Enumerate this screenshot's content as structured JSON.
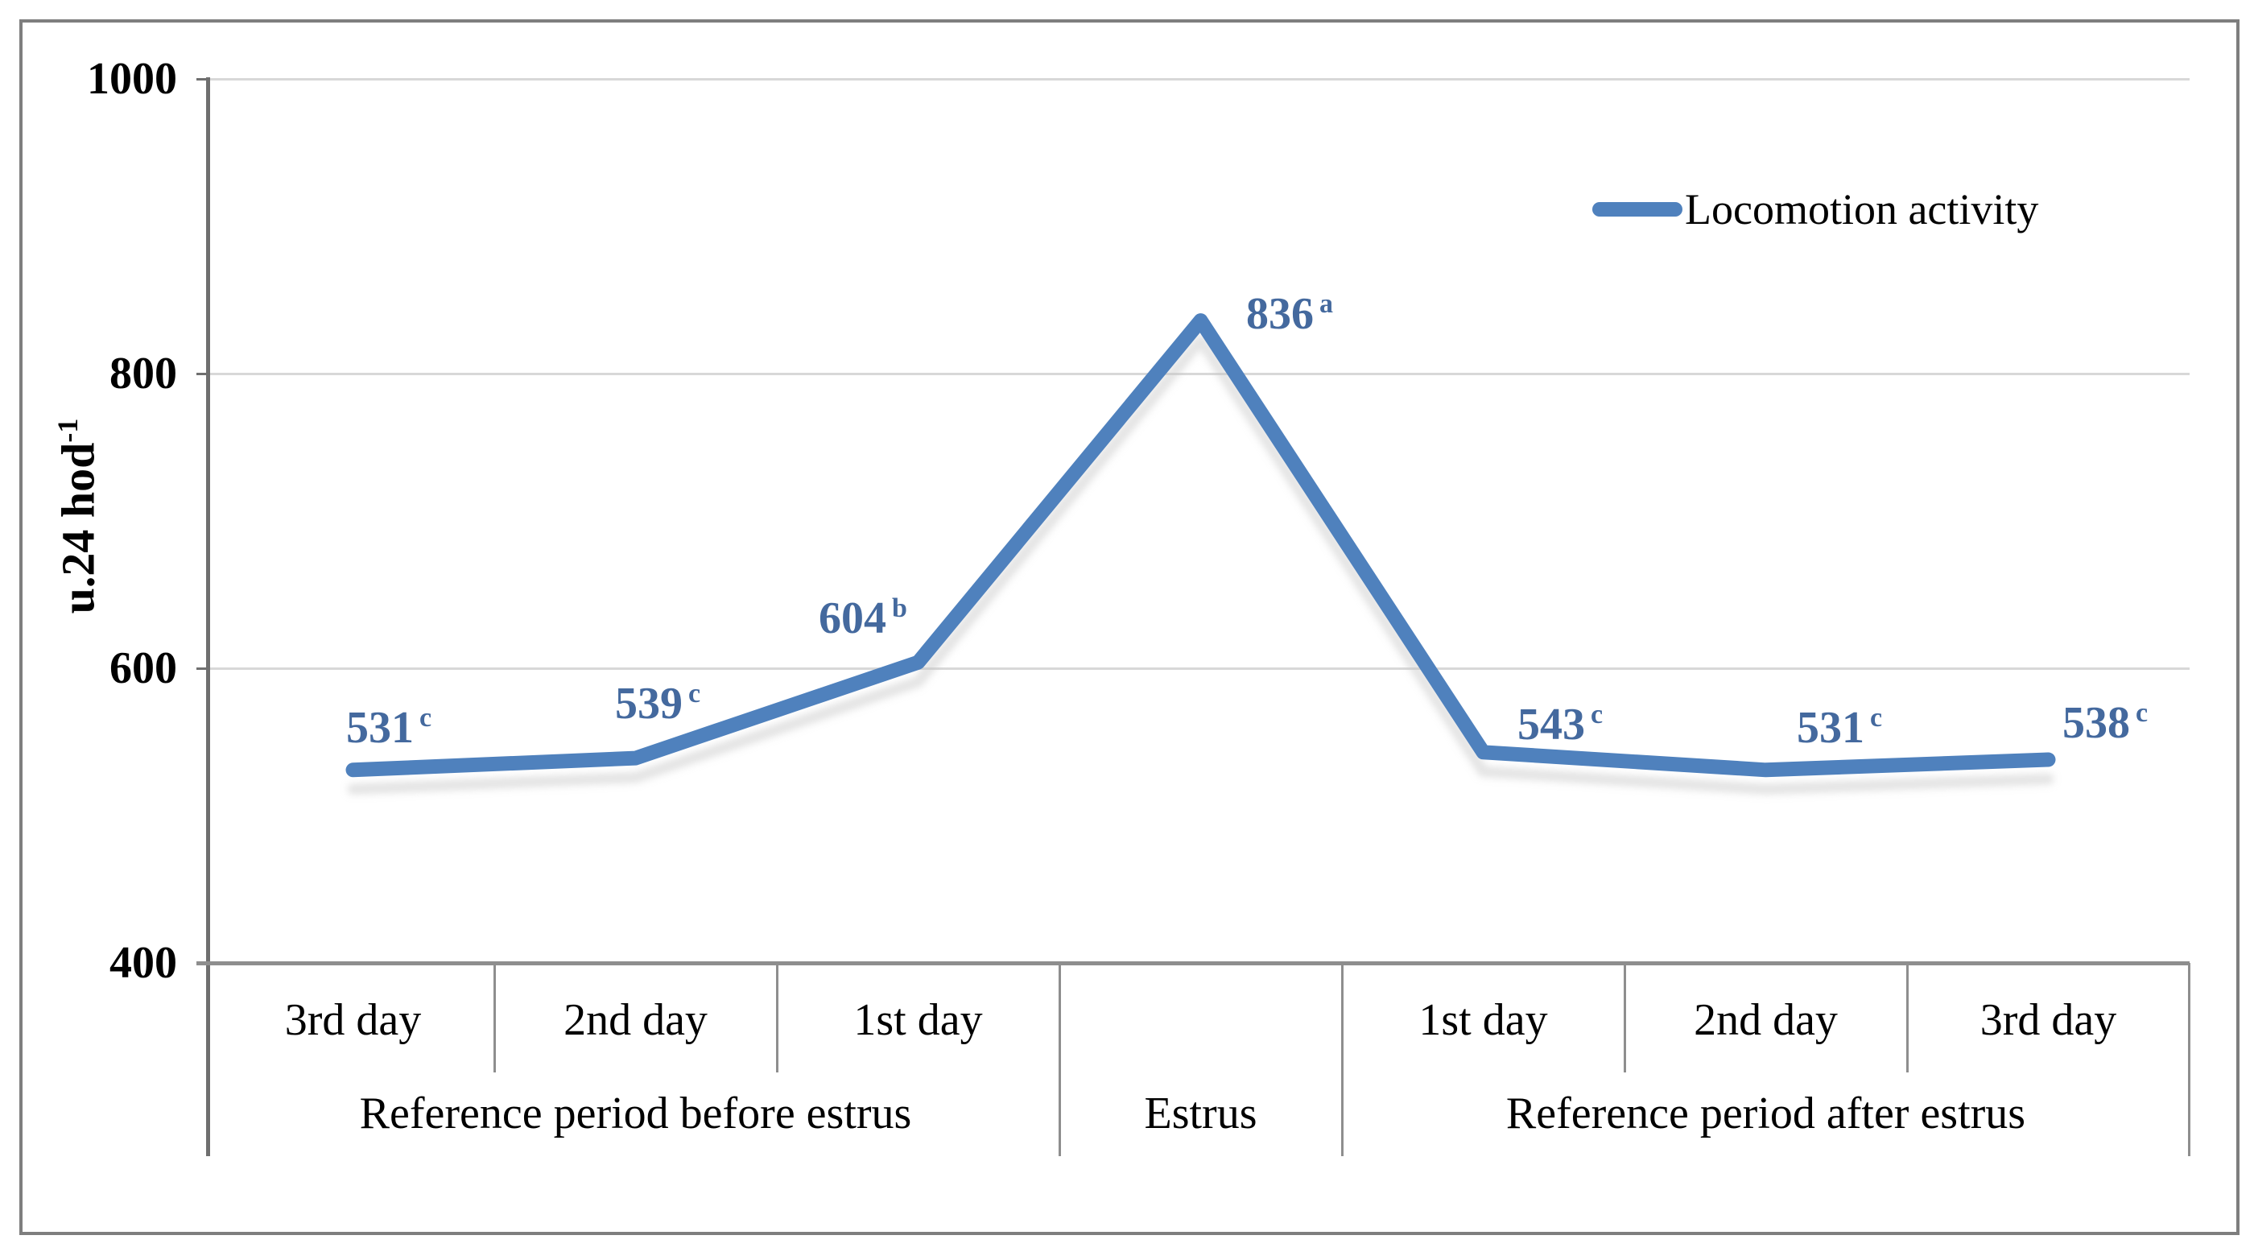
{
  "chart_data": {
    "type": "line",
    "title": "",
    "ylabel": "u.24 hod⁻¹",
    "ylabel_base": "u.24 hod",
    "ylabel_superscript": "-1",
    "ylim": [
      400,
      1000
    ],
    "ytick_values": [
      1000,
      800,
      600,
      400
    ],
    "grid": true,
    "legend_position": "top-right",
    "categories": [
      "3rd day",
      "2nd day",
      "1st day",
      "Estrus",
      "1st day",
      "2nd day",
      "3rd day"
    ],
    "group_labels": [
      "Reference period before estrus",
      "Estrus",
      "Reference period after estrus"
    ],
    "series": [
      {
        "name": "Locomotion activity",
        "values": [
          531,
          539,
          604,
          836,
          543,
          531,
          538
        ],
        "superscripts": [
          "c",
          "c",
          "b",
          "a",
          "c",
          "c",
          "c"
        ],
        "color": "#4F81BD"
      }
    ],
    "data_labels": [
      {
        "value": "531",
        "sup": "c"
      },
      {
        "value": "539",
        "sup": "c"
      },
      {
        "value": "604",
        "sup": "b"
      },
      {
        "value": "836",
        "sup": "a"
      },
      {
        "value": "543",
        "sup": "c"
      },
      {
        "value": "531",
        "sup": "c"
      },
      {
        "value": "538",
        "sup": "c"
      }
    ]
  },
  "y_axis": {
    "ticks": [
      "1000",
      "800",
      "600",
      "400"
    ],
    "title_base": "u.24 hod",
    "title_sup": "-1"
  },
  "x_axis": {
    "day_labels": [
      "3rd day",
      "2nd day",
      "1st day",
      "",
      "1st day",
      "2nd day",
      "3rd day"
    ],
    "group_labels": [
      "Reference period before estrus",
      "Estrus",
      "Reference period after estrus"
    ]
  },
  "legend": {
    "label": "Locomotion activity",
    "swatch_color": "#4F81BD"
  },
  "colors": {
    "line": "#4F81BD",
    "data_label": "#44699E",
    "gridline": "#D8D8D8",
    "axis": "#8E8E8E",
    "border": "#7E7E7E"
  }
}
